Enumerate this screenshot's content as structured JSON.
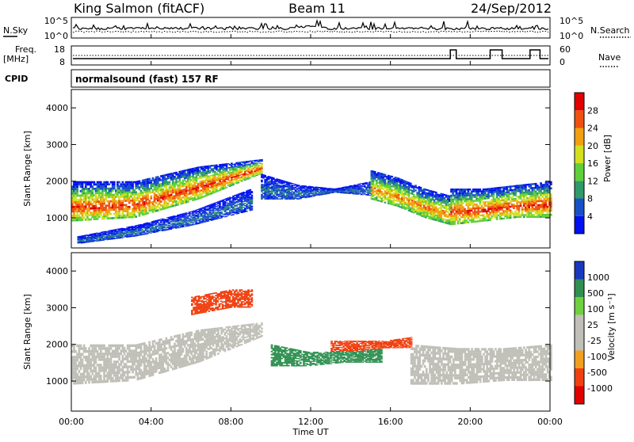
{
  "header": {
    "station": "King Salmon (fitACF)",
    "beam": "Beam 11",
    "date": "24/Sep/2012"
  },
  "strip_nsky": {
    "left_label": "N.Sky",
    "right_label": "N.Search",
    "left_ticks": [
      "10^5",
      "10^0"
    ],
    "right_ticks": [
      "10^5",
      "10^0"
    ]
  },
  "strip_freq": {
    "left_label_line1": "Freq.",
    "left_label_line2": "[MHz]",
    "right_label": "Nave",
    "left_ticks": [
      "18",
      "8"
    ],
    "right_ticks": [
      "60",
      "0"
    ]
  },
  "cpid": {
    "label": "CPID",
    "program": "normalsound (fast) 157 RF"
  },
  "panels": {
    "power": {
      "ylabel": "Slant Range [km]",
      "yticks": [
        "1000",
        "2000",
        "3000",
        "4000"
      ],
      "colorbar_label": "Power [dB]",
      "colorbar_ticks": [
        "4",
        "8",
        "12",
        "16",
        "20",
        "24",
        "28"
      ]
    },
    "velocity": {
      "ylabel": "Slant Range [km]",
      "yticks": [
        "1000",
        "2000",
        "3000",
        "4000"
      ],
      "colorbar_label": "Velocity [m s⁻¹]",
      "colorbar_ticks": [
        "1000",
        "500",
        "100",
        "25",
        "-25",
        "-100",
        "-500",
        "-1000"
      ]
    }
  },
  "xaxis": {
    "label": "Time UT",
    "ticks": [
      "00:00",
      "04:00",
      "08:00",
      "12:00",
      "16:00",
      "20:00",
      "00:00"
    ]
  },
  "colors": {
    "power_scale": [
      "#0010f0",
      "#1850c8",
      "#2f9a6a",
      "#5fcf3a",
      "#d2e020",
      "#f0a010",
      "#f05010",
      "#e00000"
    ],
    "velocity_scale": [
      "#e00000",
      "#f04010",
      "#f0a020",
      "#c0c0b8",
      "#c0c0b8",
      "#70d040",
      "#2f9050",
      "#1838c0"
    ]
  },
  "chart_data": [
    {
      "type": "heatmap",
      "quantity": "Power [dB]",
      "x_range_hours_ut": [
        0,
        24
      ],
      "y_range_km": [
        180,
        4500
      ],
      "color_range_db": [
        0,
        32
      ],
      "features": [
        {
          "x_start_h": 0.0,
          "x_end_h": 9.5,
          "y_lower_km": [
            900,
            1000,
            1500,
            2200
          ],
          "y_upper_km": [
            2000,
            2000,
            2400,
            2600
          ],
          "peak_power_db": 28
        },
        {
          "x_start_h": 0.3,
          "x_end_h": 9.0,
          "y_lower_km": [
            300,
            500,
            800,
            1200
          ],
          "y_upper_km": [
            500,
            800,
            1200,
            1800
          ],
          "peak_power_db": 8
        },
        {
          "x_start_h": 9.5,
          "x_end_h": 15.0,
          "y_lower_km": [
            1500,
            1500,
            1700,
            1600
          ],
          "y_upper_km": [
            2200,
            1900,
            1800,
            2000
          ],
          "peak_power_db": 8
        },
        {
          "x_start_h": 15.0,
          "x_end_h": 19.0,
          "y_lower_km": [
            1500,
            1300,
            1000,
            800
          ],
          "y_upper_km": [
            2300,
            2100,
            1800,
            1600
          ],
          "peak_power_db": 24
        },
        {
          "x_start_h": 19.0,
          "x_end_h": 24.0,
          "y_lower_km": [
            800,
            900,
            1000,
            1000
          ],
          "y_upper_km": [
            1800,
            1800,
            1900,
            2000
          ],
          "peak_power_db": 28
        }
      ]
    },
    {
      "type": "heatmap",
      "quantity": "Velocity [m s-1]",
      "x_range_hours_ut": [
        0,
        24
      ],
      "y_range_km": [
        180,
        4500
      ],
      "color_range_ms": [
        -1000,
        1000
      ],
      "features": [
        {
          "x_start_h": 0.0,
          "x_end_h": 9.5,
          "y_lower_km": [
            900,
            1000,
            1500,
            2200
          ],
          "y_upper_km": [
            2000,
            2000,
            2400,
            2600
          ],
          "velocity_ms": 0
        },
        {
          "x_start_h": 6.0,
          "x_end_h": 9.0,
          "y_lower_km": [
            2800,
            2900,
            3000,
            3000
          ],
          "y_upper_km": [
            3300,
            3400,
            3500,
            3500
          ],
          "velocity_ms": -300
        },
        {
          "x_start_h": 10.0,
          "x_end_h": 15.5,
          "y_lower_km": [
            1400,
            1400,
            1500,
            1500
          ],
          "y_upper_km": [
            2000,
            1800,
            1800,
            1900
          ],
          "velocity_ms": 200
        },
        {
          "x_start_h": 13.0,
          "x_end_h": 17.0,
          "y_lower_km": [
            1800,
            1800,
            1900,
            1900
          ],
          "y_upper_km": [
            2100,
            2100,
            2100,
            2200
          ],
          "velocity_ms": -200
        },
        {
          "x_start_h": 17.0,
          "x_end_h": 24.0,
          "y_lower_km": [
            900,
            900,
            1000,
            1000
          ],
          "y_upper_km": [
            2000,
            1900,
            1900,
            2000
          ],
          "velocity_ms": 0
        }
      ]
    }
  ]
}
